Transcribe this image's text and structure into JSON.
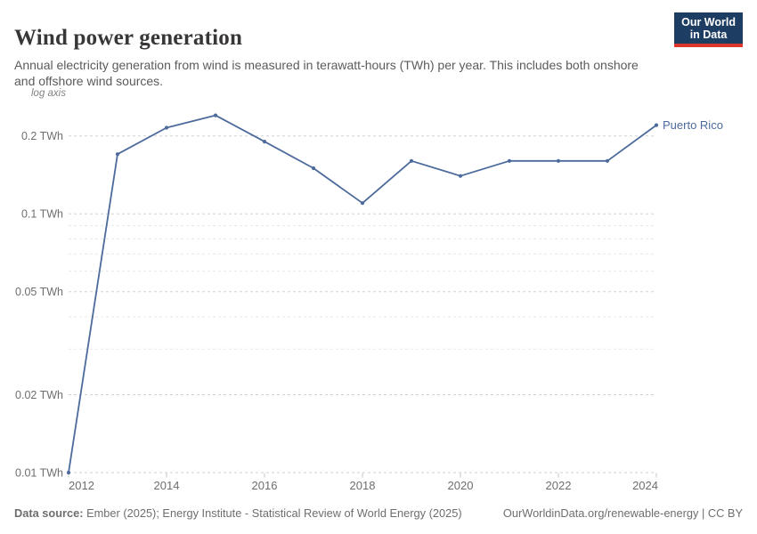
{
  "header": {
    "title": "Wind power generation",
    "subtitle": "Annual electricity generation from wind is measured in terawatt-hours (TWh) per year. This includes both onshore and offshore wind sources."
  },
  "logo": {
    "line1": "Our World",
    "line2": "in Data"
  },
  "axis_note": "log axis",
  "chart_data": {
    "type": "line",
    "title": "Wind power generation",
    "unit": "TWh",
    "scale_y": "log",
    "grid": "dashed horizontal only",
    "legend_position": "end-of-line label",
    "x": [
      2012,
      2013,
      2014,
      2015,
      2016,
      2017,
      2018,
      2019,
      2020,
      2021,
      2022,
      2023,
      2024
    ],
    "series": [
      {
        "name": "Puerto Rico",
        "values": [
          0.01,
          0.17,
          0.215,
          0.24,
          0.19,
          0.15,
          0.11,
          0.16,
          0.14,
          0.16,
          0.16,
          0.16,
          0.22
        ]
      }
    ],
    "xlim": [
      2012,
      2024
    ],
    "ylim": [
      0.01,
      0.25
    ],
    "x_ticks": [
      2012,
      2014,
      2016,
      2018,
      2020,
      2022,
      2024
    ],
    "y_gridlines": [
      0.2,
      0.1,
      0.09,
      0.08,
      0.07,
      0.06,
      0.05,
      0.04,
      0.03,
      0.02,
      0.01
    ],
    "y_labels": [
      {
        "value": 0.2,
        "label": "0.2 TWh"
      },
      {
        "value": 0.1,
        "label": "0.1 TWh"
      },
      {
        "value": 0.05,
        "label": "0.05 TWh"
      },
      {
        "value": 0.02,
        "label": "0.02 TWh"
      },
      {
        "value": 0.01,
        "label": "0.01 TWh"
      }
    ]
  },
  "footer": {
    "source_label": "Data source:",
    "source_text": " Ember (2025); Energy Institute - Statistical Review of World Energy (2025)",
    "right_text": "OurWorldinData.org/renewable-energy | CC BY"
  },
  "colors": {
    "line": "#4C6A9C",
    "grid_major": "#d2d2d2",
    "grid_minor": "#e7e7e7",
    "axis_text": "#6e6e6e",
    "tick": "#c4c4c4",
    "logo_bg": "#1d3d63",
    "logo_red": "#dc352b"
  }
}
